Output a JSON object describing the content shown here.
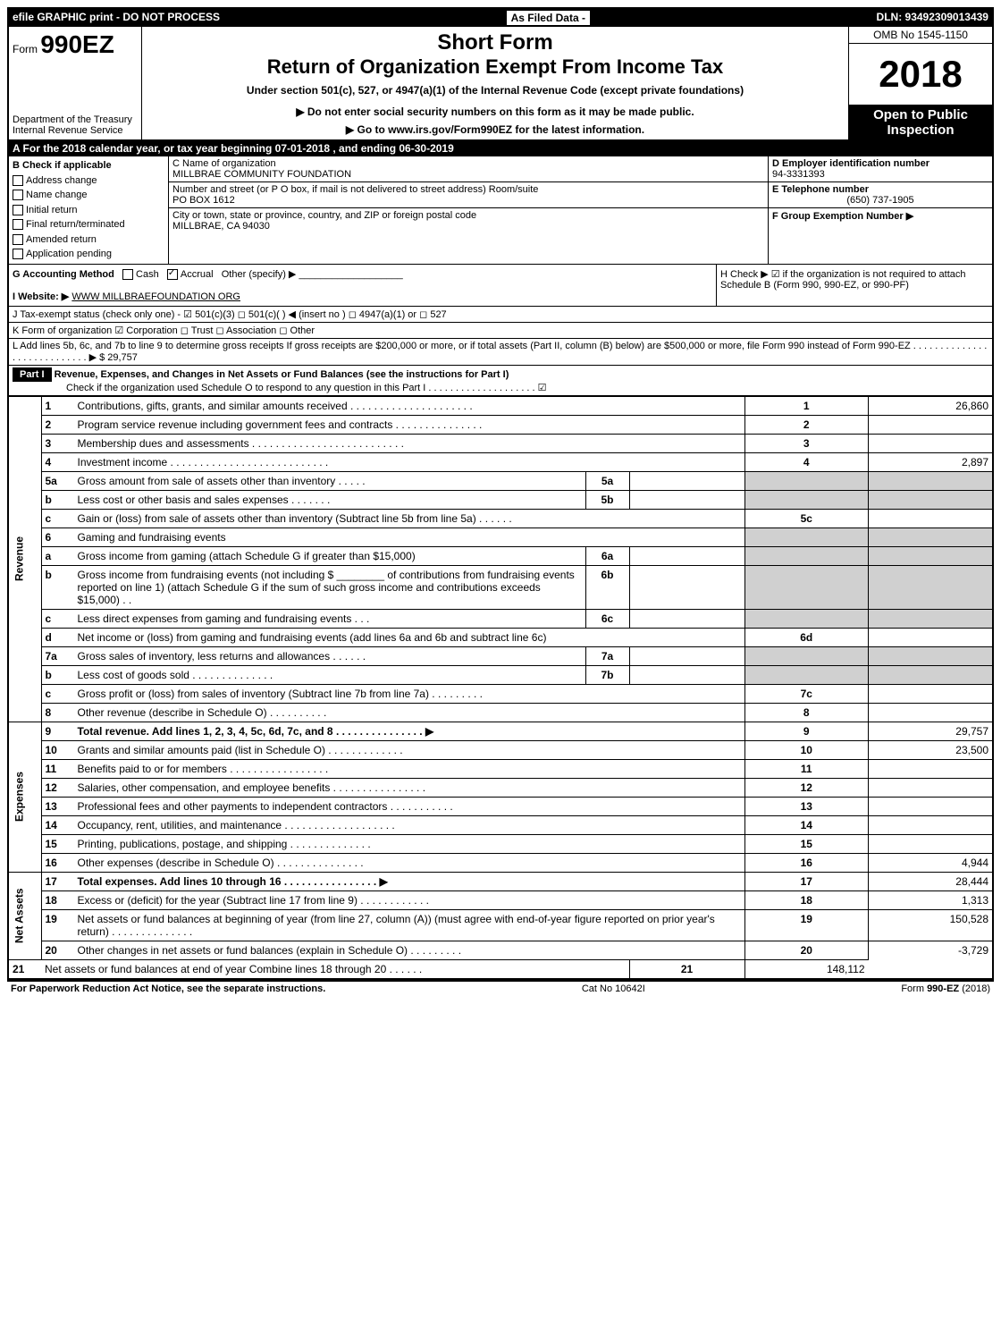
{
  "top_bar": {
    "left": "efile GRAPHIC print - DO NOT PROCESS",
    "mid": "As Filed Data -",
    "right": "DLN: 93492309013439"
  },
  "header": {
    "form_prefix": "Form",
    "form_number": "990EZ",
    "short_form": "Short Form",
    "main_title": "Return of Organization Exempt From Income Tax",
    "subtitle": "Under section 501(c), 527, or 4947(a)(1) of the Internal Revenue Code (except private foundations)",
    "omb": "OMB No 1545-1150",
    "year": "2018",
    "open_to": "Open to Public Inspection",
    "dept": "Department of the Treasury\nInternal Revenue Service",
    "directive1": "▶ Do not enter social security numbers on this form as it may be made public.",
    "directive2": "▶ Go to www.irs.gov/Form990EZ for the latest information."
  },
  "section_a": "A  For the 2018 calendar year, or tax year beginning 07-01-2018         , and ending 06-30-2019",
  "check_b": {
    "label": "B  Check if applicable",
    "items": [
      "Address change",
      "Name change",
      "Initial return",
      "Final return/terminated",
      "Amended return",
      "Application pending"
    ]
  },
  "org": {
    "c_label": "C Name of organization",
    "name": "MILLBRAE COMMUNITY FOUNDATION",
    "addr_label": "Number and street (or P O box, if mail is not delivered to street address)  Room/suite",
    "addr": "PO BOX 1612",
    "city_label": "City or town, state or province, country, and ZIP or foreign postal code",
    "city": "MILLBRAE, CA  94030"
  },
  "right_info": {
    "d_label": "D Employer identification number",
    "ein": "94-3331393",
    "e_label": "E Telephone number",
    "phone": "(650) 737-1905",
    "f_label": "F Group Exemption Number   ▶"
  },
  "g": {
    "label": "G Accounting Method",
    "cash": "Cash",
    "accrual": "Accrual",
    "other": "Other (specify) ▶"
  },
  "h": {
    "text": "H  Check ▶  ☑ if the organization is not required to attach Schedule B (Form 990, 990-EZ, or 990-PF)"
  },
  "i": {
    "label": "I Website: ▶",
    "value": "WWW MILLBRAEFOUNDATION ORG"
  },
  "j": "J Tax-exempt status (check only one) - ☑ 501(c)(3) ◻ 501(c)( ) ◀ (insert no ) ◻ 4947(a)(1) or ◻ 527",
  "k": "K Form of organization    ☑ Corporation  ◻ Trust  ◻ Association  ◻ Other",
  "l": {
    "text": "L Add lines 5b, 6c, and 7b to line 9 to determine gross receipts  If gross receipts are $200,000 or more, or if total assets (Part II, column (B) below) are $500,000 or more, file Form 990 instead of Form 990-EZ . . . . . . . . . . . . . . . . . . . . . . . . . . . . ▶ $ 29,757"
  },
  "part1": {
    "header": "Part I",
    "title": "Revenue, Expenses, and Changes in Net Assets or Fund Balances (see the instructions for Part I)",
    "check_o": "Check if the organization used Schedule O to respond to any question in this Part I . . . . . . . . . . . . . . . . . . . . ☑"
  },
  "side_labels": {
    "revenue": "Revenue",
    "expenses": "Expenses",
    "net_assets": "Net Assets"
  },
  "lines": [
    {
      "n": "1",
      "desc": "Contributions, gifts, grants, and similar amounts received . . . . . . . . . . . . . . . . . . . . .",
      "rn": "1",
      "rv": "26,860"
    },
    {
      "n": "2",
      "desc": "Program service revenue including government fees and contracts . . . . . . . . . . . . . . .",
      "rn": "2",
      "rv": ""
    },
    {
      "n": "3",
      "desc": "Membership dues and assessments . . . . . . . . . . . . . . . . . . . . . . . . . .",
      "rn": "3",
      "rv": ""
    },
    {
      "n": "4",
      "desc": "Investment income . . . . . . . . . . . . . . . . . . . . . . . . . . .",
      "rn": "4",
      "rv": "2,897"
    },
    {
      "n": "5a",
      "desc": "Gross amount from sale of assets other than inventory . . . . .",
      "mn": "5a",
      "mv": "",
      "grey": true
    },
    {
      "n": "b",
      "desc": "Less  cost or other basis and sales expenses . . . . . . .",
      "mn": "5b",
      "mv": "",
      "grey": true
    },
    {
      "n": "c",
      "desc": "Gain or (loss) from sale of assets other than inventory (Subtract line 5b from line 5a) . . . . . .",
      "rn": "5c",
      "rv": ""
    },
    {
      "n": "6",
      "desc": "Gaming and fundraising events",
      "grey": true
    },
    {
      "n": "a",
      "desc": "Gross income from gaming (attach Schedule G if greater than $15,000)",
      "mn": "6a",
      "mv": "",
      "grey": true
    },
    {
      "n": "b",
      "desc": "Gross income from fundraising events (not including $ ________ of contributions from fundraising events reported on line 1) (attach Schedule G if the sum of such gross income and contributions exceeds $15,000)    . .",
      "mn": "6b",
      "mv": "",
      "grey": true
    },
    {
      "n": "c",
      "desc": "Less  direct expenses from gaming and fundraising events     . . .",
      "mn": "6c",
      "mv": "",
      "grey": true
    },
    {
      "n": "d",
      "desc": "Net income or (loss) from gaming and fundraising events (add lines 6a and 6b and subtract line 6c)",
      "rn": "6d",
      "rv": ""
    },
    {
      "n": "7a",
      "desc": "Gross sales of inventory, less returns and allowances . . . . . .",
      "mn": "7a",
      "mv": "",
      "grey": true
    },
    {
      "n": "b",
      "desc": "Less  cost of goods sold             . . . . . . . . . . . . . .",
      "mn": "7b",
      "mv": "",
      "grey": true
    },
    {
      "n": "c",
      "desc": "Gross profit or (loss) from sales of inventory (Subtract line 7b from line 7a) . . . . . . . . .",
      "rn": "7c",
      "rv": ""
    },
    {
      "n": "8",
      "desc": "Other revenue (describe in Schedule O)                   . . . . . . . . . .",
      "rn": "8",
      "rv": ""
    },
    {
      "n": "9",
      "desc": "Total revenue. Add lines 1, 2, 3, 4, 5c, 6d, 7c, and 8 . . . . . . . . . . . . . . .  ▶",
      "rn": "9",
      "rv": "29,757",
      "bold": true
    },
    {
      "n": "10",
      "desc": "Grants and similar amounts paid (list in Schedule O)         . . . . . . . . . . . . .",
      "rn": "10",
      "rv": "23,500"
    },
    {
      "n": "11",
      "desc": "Benefits paid to or for members               . . . . . . . . . . . . . . . . .",
      "rn": "11",
      "rv": ""
    },
    {
      "n": "12",
      "desc": "Salaries, other compensation, and employee benefits . . . . . . . . . . . . . . . .",
      "rn": "12",
      "rv": ""
    },
    {
      "n": "13",
      "desc": "Professional fees and other payments to independent contractors . . . . . . . . . . .",
      "rn": "13",
      "rv": ""
    },
    {
      "n": "14",
      "desc": "Occupancy, rent, utilities, and maintenance . . . . . . . . . . . . . . . . . . .",
      "rn": "14",
      "rv": ""
    },
    {
      "n": "15",
      "desc": "Printing, publications, postage, and shipping           . . . . . . . . . . . . . .",
      "rn": "15",
      "rv": ""
    },
    {
      "n": "16",
      "desc": "Other expenses (describe in Schedule O)             . . . . . . . . . . . . . . .",
      "rn": "16",
      "rv": "4,944"
    },
    {
      "n": "17",
      "desc": "Total expenses. Add lines 10 through 16       . . . . . . . . . . . . . . . .  ▶",
      "rn": "17",
      "rv": "28,444",
      "bold": true
    },
    {
      "n": "18",
      "desc": "Excess or (deficit) for the year (Subtract line 17 from line 9)     . . . . . . . . . . . .",
      "rn": "18",
      "rv": "1,313"
    },
    {
      "n": "19",
      "desc": "Net assets or fund balances at beginning of year (from line 27, column (A)) (must agree with end-of-year figure reported on prior year's return)         . . . . . . . . . . . . . .",
      "rn": "19",
      "rv": "150,528"
    },
    {
      "n": "20",
      "desc": "Other changes in net assets or fund balances (explain in Schedule O)    . . . . . . . . .",
      "rn": "20",
      "rv": "-3,729"
    },
    {
      "n": "21",
      "desc": "Net assets or fund balances at end of year  Combine lines 18 through 20        . . . . . .",
      "rn": "21",
      "rv": "148,112"
    }
  ],
  "footer": {
    "left": "For Paperwork Reduction Act Notice, see the separate instructions.",
    "mid": "Cat No 10642I",
    "right": "Form 990-EZ (2018)"
  },
  "colors": {
    "black": "#000000",
    "white": "#ffffff",
    "grey": "#d0d0d0"
  }
}
